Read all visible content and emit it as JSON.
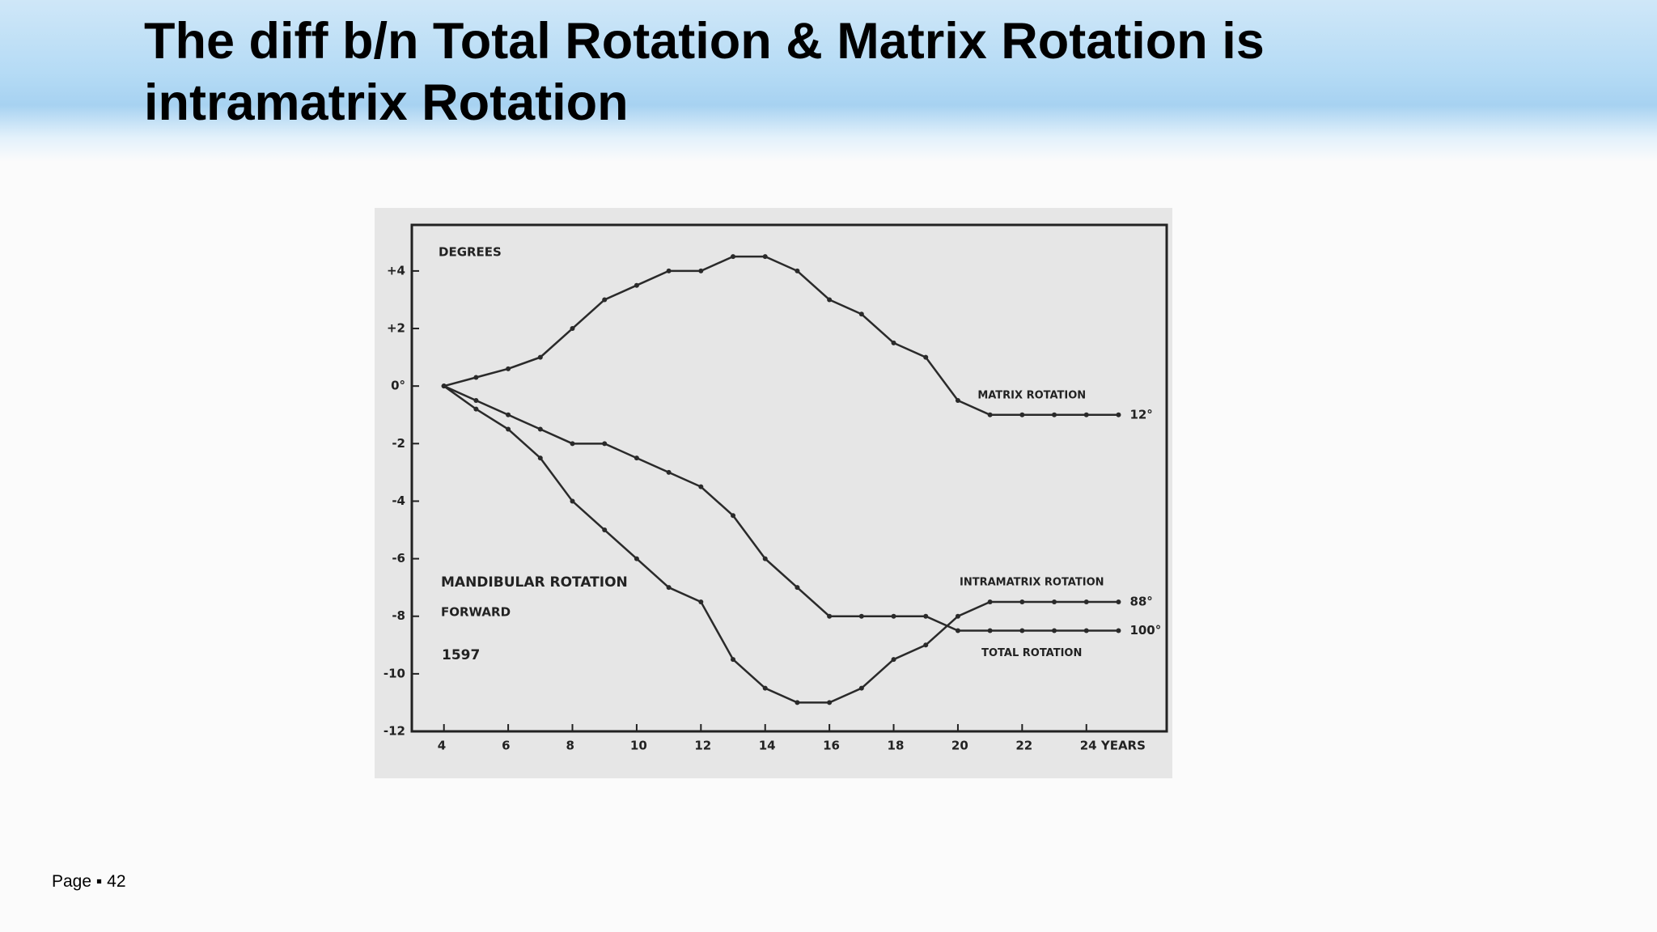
{
  "header": {
    "title_line1": "The diff b/n Total Rotation & Matrix Rotation is",
    "title_line2": "intramatrix Rotation"
  },
  "footer": "Page ▪ 42",
  "chart_data": {
    "type": "line",
    "y_label": "DEGREES",
    "annotations": [
      "MANDIBULAR ROTATION",
      "FORWARD",
      "1597"
    ],
    "x": [
      4,
      5,
      6,
      7,
      8,
      9,
      10,
      11,
      12,
      13,
      14,
      15,
      16,
      17,
      18,
      19,
      20,
      21,
      22,
      23,
      24,
      25
    ],
    "series": [
      {
        "name": "MATRIX ROTATION",
        "end_label": "12°",
        "color": "#2a2a2a",
        "values": [
          0,
          0.3,
          0.6,
          1,
          2,
          3,
          3.5,
          4,
          4,
          4.5,
          4.5,
          4,
          3,
          2.5,
          1.5,
          1,
          -0.5,
          -1,
          -1,
          -1,
          -1,
          -1
        ]
      },
      {
        "name": "INTRAMATRIX ROTATION",
        "end_label": "88°",
        "color": "#2a2a2a",
        "values": [
          0,
          -0.8,
          -1.5,
          -2.5,
          -4,
          -5,
          -6,
          -7,
          -7.5,
          -9.5,
          -10.5,
          -11,
          -11,
          -10.5,
          -9.5,
          -9,
          -8,
          -7.5,
          -7.5,
          -7.5,
          -7.5,
          -7.5
        ]
      },
      {
        "name": "TOTAL ROTATION",
        "end_label": "100°",
        "color": "#2a2a2a",
        "values": [
          0,
          -0.5,
          -1,
          -1.5,
          -2,
          -2,
          -2.5,
          -3,
          -3.5,
          -4.5,
          -6,
          -7,
          -8,
          -8,
          -8,
          -8,
          -8.5,
          -8.5,
          -8.5,
          -8.5,
          -8.5,
          -8.5
        ]
      }
    ],
    "xlim": [
      3,
      26.5
    ],
    "ylim": [
      -12,
      5.6
    ],
    "xticks": [
      4,
      6,
      8,
      10,
      12,
      14,
      16,
      18,
      20,
      22,
      {
        "value": 24,
        "label": "24 YEARS"
      }
    ],
    "yticks": [
      {
        "value": 4,
        "label": "+4"
      },
      {
        "value": 2,
        "label": "+2"
      },
      {
        "value": 0,
        "label": "0°"
      },
      -2,
      -4,
      -6,
      -8,
      -10,
      -12
    ],
    "grid": false
  }
}
